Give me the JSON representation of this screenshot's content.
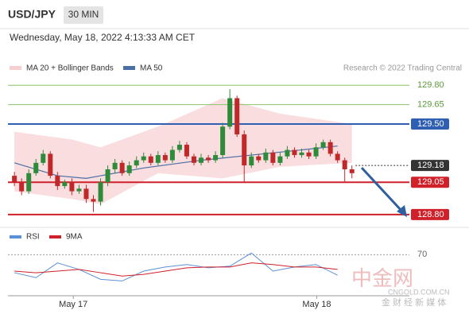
{
  "header": {
    "symbol": "USD/JPY",
    "interval": "30 MIN",
    "timestamp": "Wednesday, May 18, 2022 4:13:33 AM CET"
  },
  "watermark": {
    "brand": "中金网",
    "site": "CNGOLD.COM.CN",
    "tagline": "金 财 经 新 媒 体"
  },
  "chart_data": {
    "type": "candlestick",
    "legend": {
      "bands": "MA 20 + Bollinger Bands",
      "ma": "MA 50",
      "credit": "Research © 2022 Trading Central"
    },
    "up_color": "#2e8b3a",
    "down_color": "#c0282a",
    "open": [
      129.1,
      129.05,
      128.98,
      129.12,
      129.2,
      129.27,
      129.1,
      129.02,
      129.05,
      128.98,
      129.0,
      128.92,
      128.9,
      129.05,
      129.15,
      129.2,
      129.12,
      129.18,
      129.22,
      129.25,
      129.2,
      129.26,
      129.22,
      129.3,
      129.34,
      129.25,
      129.2,
      129.24,
      129.22,
      129.26,
      129.48,
      129.7,
      129.42,
      129.18,
      129.25,
      129.22,
      129.28,
      129.2,
      129.25,
      129.3,
      129.26,
      129.28,
      129.25,
      129.32,
      129.36,
      129.27,
      129.22,
      129.15
    ],
    "high": [
      129.13,
      129.08,
      129.15,
      129.23,
      129.3,
      129.29,
      129.13,
      129.07,
      129.08,
      129.03,
      129.03,
      128.95,
      129.08,
      129.18,
      129.23,
      129.22,
      129.21,
      129.25,
      129.28,
      129.27,
      129.29,
      129.28,
      129.33,
      129.37,
      129.36,
      129.27,
      129.27,
      129.26,
      129.29,
      129.51,
      129.77,
      129.72,
      129.45,
      129.28,
      129.27,
      129.31,
      129.3,
      129.28,
      129.33,
      129.32,
      129.31,
      129.3,
      129.35,
      129.38,
      129.38,
      129.29,
      129.24,
      129.18
    ],
    "low": [
      129.02,
      128.95,
      128.96,
      129.1,
      129.18,
      129.08,
      128.99,
      129.0,
      128.95,
      128.96,
      128.89,
      128.82,
      128.87,
      129.02,
      129.12,
      129.1,
      129.1,
      129.16,
      129.2,
      129.18,
      129.18,
      129.2,
      129.2,
      129.28,
      129.23,
      129.18,
      129.18,
      129.2,
      129.2,
      129.24,
      129.46,
      129.4,
      129.05,
      129.16,
      129.2,
      129.2,
      129.18,
      129.18,
      129.23,
      129.24,
      129.24,
      129.23,
      129.23,
      129.3,
      129.25,
      129.2,
      129.05,
      129.08
    ],
    "close": [
      129.05,
      128.98,
      129.12,
      129.2,
      129.27,
      129.1,
      129.02,
      129.05,
      128.98,
      129.0,
      128.92,
      128.9,
      129.05,
      129.15,
      129.2,
      129.12,
      129.18,
      129.22,
      129.25,
      129.2,
      129.26,
      129.22,
      129.3,
      129.34,
      129.25,
      129.2,
      129.24,
      129.22,
      129.26,
      129.48,
      129.7,
      129.42,
      129.18,
      129.25,
      129.22,
      129.28,
      129.2,
      129.25,
      129.3,
      129.26,
      129.28,
      129.25,
      129.32,
      129.36,
      129.27,
      129.22,
      129.15,
      129.12
    ],
    "bands": {
      "color": "#f6cfd1",
      "x": [
        0,
        8,
        12,
        20,
        29,
        37,
        47
      ],
      "upper": [
        129.44,
        129.38,
        129.32,
        129.48,
        129.7,
        129.58,
        129.5
      ],
      "lower": [
        128.98,
        128.92,
        128.88,
        129.12,
        129.08,
        129.17,
        129.2
      ]
    },
    "ma50": {
      "color": "#4a6fa5",
      "x": [
        0,
        6,
        10,
        18,
        26,
        33,
        40,
        45
      ],
      "values": [
        129.2,
        129.1,
        129.08,
        129.16,
        129.22,
        129.26,
        129.3,
        129.33
      ]
    },
    "levels": [
      {
        "value": 129.8,
        "label": "129.80",
        "color": "#8dc26f"
      },
      {
        "value": 129.65,
        "color": "#8dc26f"
      },
      {
        "value": 129.5,
        "label": "129.50",
        "color": "#2f5fb3",
        "boxed": true
      },
      {
        "value": 129.18,
        "color": "#333333",
        "boxed": true,
        "dotted": true
      },
      {
        "value": 129.05,
        "color": "#d0202a",
        "boxed": true
      },
      {
        "value": 128.8,
        "label": "128.80",
        "color": "#d0202a",
        "boxed": true
      }
    ],
    "xlim": [
      -0.9,
      55
    ],
    "ylim": [
      128.75,
      129.9
    ],
    "xticks": [
      {
        "value": 8.2,
        "label": "May 17"
      },
      {
        "value": 42.1,
        "label": "May 18"
      }
    ],
    "rsi": {
      "legend": {
        "rsi": "RSI",
        "ma": "9MA"
      },
      "ylim": [
        20,
        80
      ],
      "yticks": [
        70
      ],
      "x": [
        0,
        3,
        6,
        9,
        12,
        15,
        18,
        21,
        24,
        27,
        30,
        33,
        36,
        39,
        42,
        45
      ],
      "series": [
        {
          "name": "RSI",
          "color": "#5b8fd6",
          "values": [
            48,
            42,
            60,
            52,
            40,
            38,
            50,
            55,
            58,
            54,
            56,
            72,
            50,
            55,
            58,
            45
          ]
        },
        {
          "name": "9MA",
          "color": "#d0202a",
          "values": [
            50,
            48,
            50,
            52,
            48,
            44,
            46,
            50,
            54,
            55,
            55,
            60,
            58,
            55,
            55,
            52
          ]
        }
      ]
    }
  }
}
